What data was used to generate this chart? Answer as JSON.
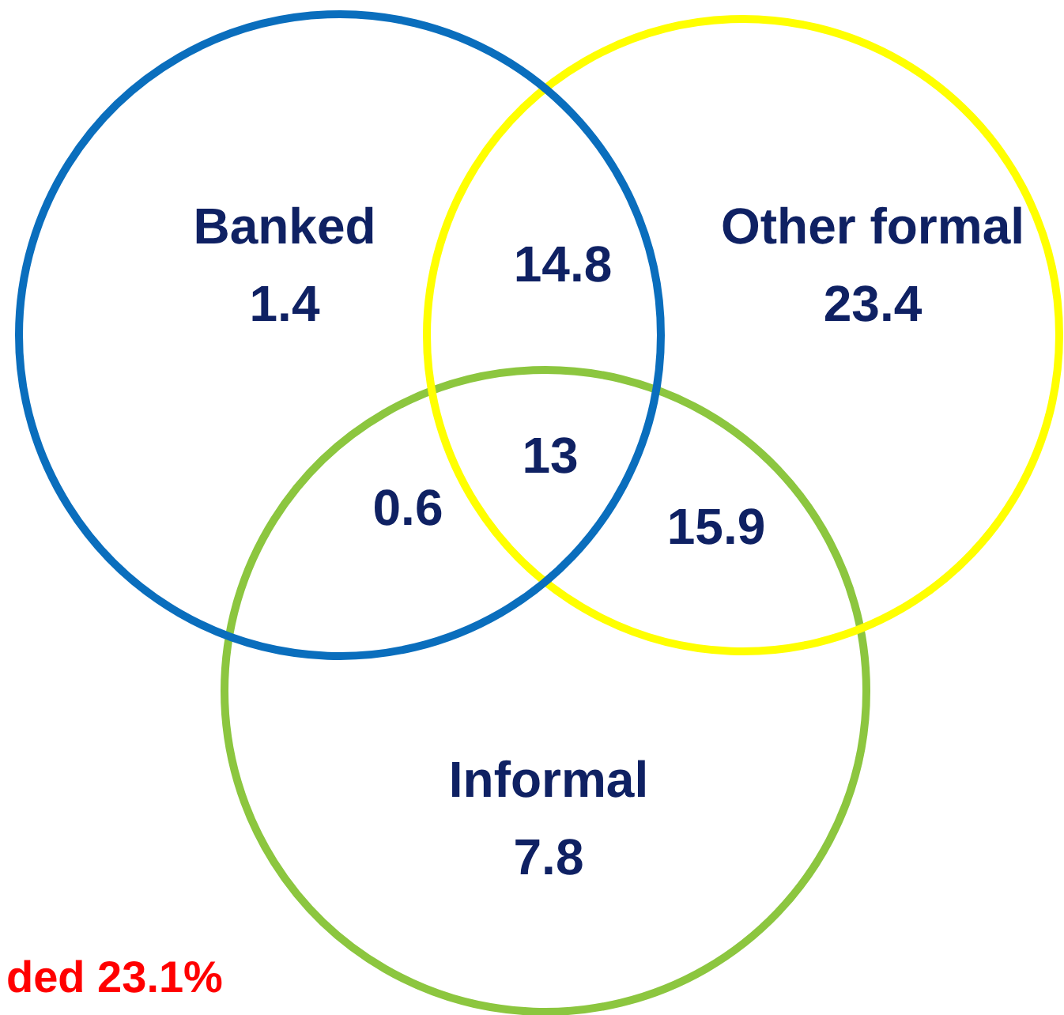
{
  "chart_data": {
    "type": "other",
    "categories": [
      "Banked",
      "Other formal",
      "Informal"
    ],
    "values": [
      1.4,
      23.4,
      7.8
    ],
    "colors": [
      "#0a6ebd",
      "#ffff00",
      "#8cc63f"
    ],
    "data_labels": true,
    "annotations": [
      "14.8",
      "13",
      "0.6",
      "15.9",
      "ded 23.1%"
    ]
  }
}
